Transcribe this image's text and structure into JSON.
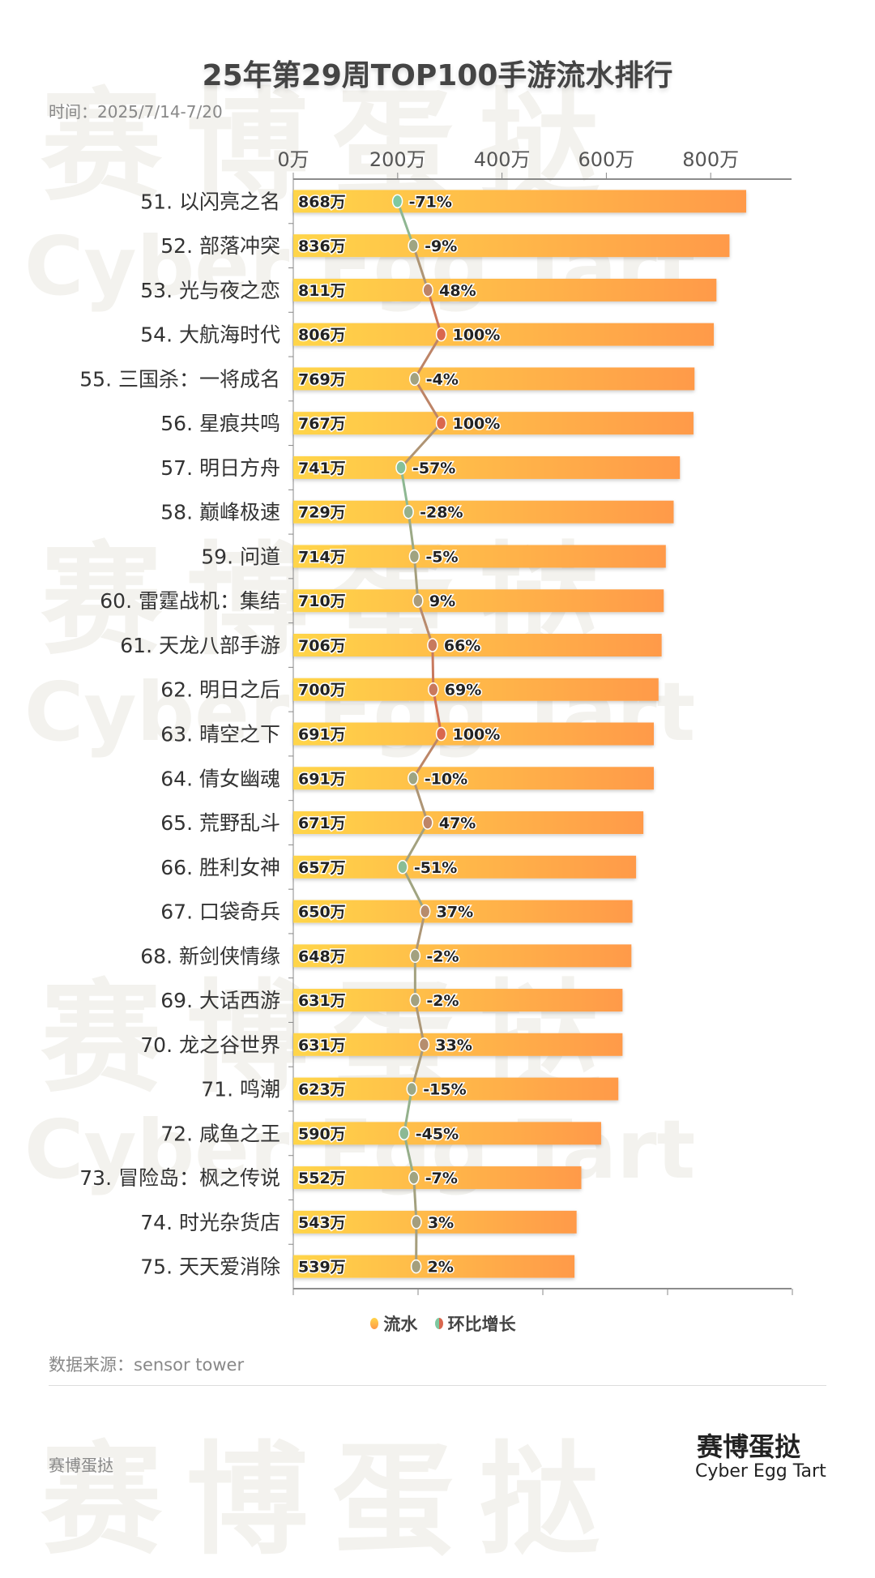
{
  "watermark": {
    "cn": "赛博蛋挞",
    "en": "Cyber Egg Tart"
  },
  "chart_data": {
    "type": "bar+line",
    "title": "25年第29周TOP100手游流水排行",
    "subtitle": "时间：2025/7/14-7/20",
    "x_axis": {
      "ticks": [
        "0万",
        "200万",
        "400万",
        "600万",
        "800万"
      ],
      "range": [
        0,
        1000
      ],
      "unit": "万",
      "position": "top"
    },
    "categories": [
      "51. 以闪亮之名",
      "52. 部落冲突",
      "53. 光与夜之恋",
      "54. 大航海时代",
      "55. 三国杀：一将成名",
      "56. 星痕共鸣",
      "57. 明日方舟",
      "58. 巅峰极速",
      "59. 问道",
      "60. 雷霆战机：集结",
      "61. 天龙八部手游",
      "62. 明日之后",
      "63. 晴空之下",
      "64. 倩女幽魂",
      "65. 荒野乱斗",
      "66. 胜利女神",
      "67. 口袋奇兵",
      "68. 新剑侠情缘",
      "69. 大话西游",
      "70. 龙之谷世界",
      "71. 鸣潮",
      "72. 咸鱼之王",
      "73. 冒险岛：枫之传说",
      "74. 时光杂货店",
      "75. 天天爱消除"
    ],
    "series": [
      {
        "name": "流水",
        "type": "bar",
        "values": [
          868,
          836,
          811,
          806,
          769,
          767,
          741,
          729,
          714,
          710,
          706,
          700,
          691,
          691,
          671,
          657,
          650,
          648,
          631,
          631,
          623,
          590,
          552,
          543,
          539
        ],
        "labels": [
          "868万",
          "836万",
          "811万",
          "806万",
          "769万",
          "767万",
          "741万",
          "729万",
          "714万",
          "710万",
          "706万",
          "700万",
          "691万",
          "691万",
          "671万",
          "657万",
          "650万",
          "648万",
          "631万",
          "631万",
          "623万",
          "590万",
          "552万",
          "543万",
          "539万"
        ],
        "colors": [
          "#ffd54a",
          "#ff9a48"
        ]
      },
      {
        "name": "环比增长",
        "type": "line",
        "values": [
          -71,
          -9,
          48,
          100,
          -4,
          100,
          -57,
          -28,
          -5,
          9,
          66,
          69,
          100,
          -10,
          47,
          -51,
          37,
          -2,
          -2,
          33,
          -15,
          -45,
          -7,
          3,
          2
        ],
        "labels": [
          "-71%",
          "-9%",
          "48%",
          "100%",
          "-4%",
          "100%",
          "-57%",
          "-28%",
          "-5%",
          "9%",
          "66%",
          "69%",
          "100%",
          "-10%",
          "47%",
          "-51%",
          "37%",
          "-2%",
          "-2%",
          "33%",
          "-15%",
          "-45%",
          "-7%",
          "3%",
          "2%"
        ],
        "colors": [
          "#7ec8a0",
          "#d9674e"
        ]
      }
    ],
    "legend": {
      "position": "bottom",
      "items": [
        "流水",
        "环比增长"
      ]
    },
    "grid": false
  },
  "source": "数据来源：sensor tower",
  "footer": {
    "brand": "赛博蛋挞",
    "logo_cn": "赛博蛋挞",
    "logo_en": "Cyber Egg Tart"
  }
}
